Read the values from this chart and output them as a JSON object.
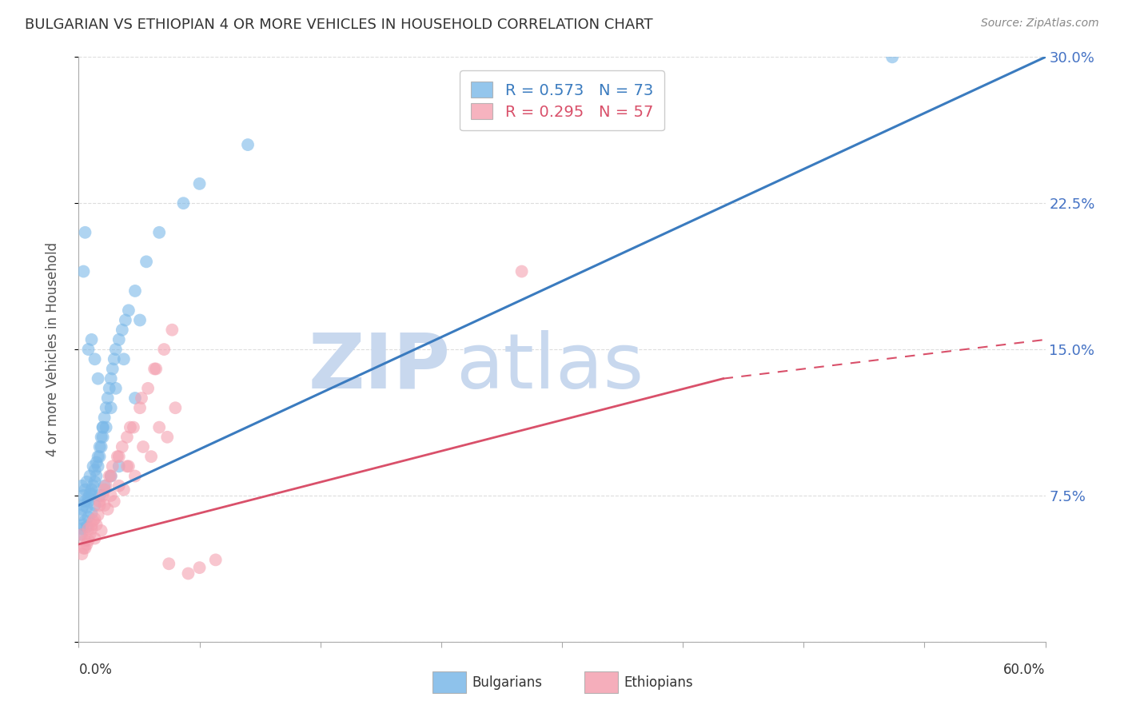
{
  "title": "BULGARIAN VS ETHIOPIAN 4 OR MORE VEHICLES IN HOUSEHOLD CORRELATION CHART",
  "source": "Source: ZipAtlas.com",
  "ylabel": "4 or more Vehicles in Household",
  "xmin": 0.0,
  "xmax": 60.0,
  "ymin": 0.0,
  "ymax": 30.0,
  "yticks_right": [
    7.5,
    15.0,
    22.5,
    30.0
  ],
  "xticks": [
    0.0,
    7.5,
    15.0,
    22.5,
    30.0,
    37.5,
    45.0,
    52.5,
    60.0
  ],
  "bulgarian_R": 0.573,
  "bulgarian_N": 73,
  "ethiopian_R": 0.295,
  "ethiopian_N": 57,
  "bg_color": "#ffffff",
  "blue_scatter_color": "#7ab8e8",
  "pink_scatter_color": "#f4a0b0",
  "blue_line_color": "#3a7bbf",
  "pink_line_color": "#d9506a",
  "watermark_zip_color": "#c8d8ee",
  "watermark_atlas_color": "#c8d8ee",
  "watermark_text_zip": "ZIP",
  "watermark_text_atlas": "atlas",
  "grid_color": "#dddddd",
  "tick_color": "#aaaaaa",
  "right_axis_color": "#4472c4",
  "blue_line_x0": 0.0,
  "blue_line_y0": 7.0,
  "blue_line_x1": 60.0,
  "blue_line_y1": 30.0,
  "pink_line_x0": 0.0,
  "pink_line_y0": 5.0,
  "pink_line_x1_solid": 40.0,
  "pink_line_y1_solid": 13.5,
  "pink_line_x1_dash": 60.0,
  "pink_line_y1_dash": 15.5,
  "bulgarian_scatter_x": [
    0.2,
    0.3,
    0.4,
    0.5,
    0.6,
    0.7,
    0.8,
    0.9,
    1.0,
    1.1,
    1.2,
    1.3,
    1.4,
    1.5,
    1.6,
    1.7,
    1.8,
    1.9,
    2.0,
    2.1,
    2.2,
    2.3,
    2.5,
    2.7,
    2.9,
    3.1,
    3.5,
    4.2,
    5.0,
    6.5,
    0.1,
    0.2,
    0.3,
    0.4,
    0.5,
    0.6,
    0.7,
    0.8,
    0.9,
    1.0,
    1.1,
    1.2,
    1.3,
    1.4,
    1.5,
    1.7,
    2.0,
    2.3,
    2.8,
    3.8,
    0.1,
    0.2,
    0.3,
    0.4,
    0.5,
    0.6,
    0.8,
    1.0,
    1.3,
    1.6,
    2.0,
    2.5,
    10.5,
    50.5,
    7.5,
    3.5,
    1.0,
    1.2,
    1.5,
    0.4,
    0.3,
    0.6,
    0.8
  ],
  "bulgarian_scatter_y": [
    8.0,
    7.5,
    7.8,
    8.2,
    7.2,
    8.5,
    7.6,
    9.0,
    8.8,
    9.2,
    9.5,
    10.0,
    10.5,
    11.0,
    11.5,
    12.0,
    12.5,
    13.0,
    13.5,
    14.0,
    14.5,
    15.0,
    15.5,
    16.0,
    16.5,
    17.0,
    18.0,
    19.5,
    21.0,
    22.5,
    6.5,
    6.8,
    7.0,
    7.2,
    6.9,
    7.4,
    7.6,
    7.8,
    8.0,
    8.2,
    8.5,
    9.0,
    9.5,
    10.0,
    10.5,
    11.0,
    12.0,
    13.0,
    14.5,
    16.5,
    5.5,
    5.8,
    6.0,
    6.2,
    5.9,
    6.4,
    6.6,
    7.0,
    7.5,
    8.0,
    8.5,
    9.0,
    25.5,
    30.0,
    23.5,
    12.5,
    14.5,
    13.5,
    11.0,
    21.0,
    19.0,
    15.0,
    15.5
  ],
  "ethiopian_scatter_x": [
    0.2,
    0.4,
    0.6,
    0.8,
    1.0,
    1.2,
    1.4,
    1.6,
    1.8,
    2.0,
    2.2,
    2.5,
    2.8,
    3.1,
    3.5,
    4.0,
    4.5,
    5.0,
    5.5,
    6.0,
    0.3,
    0.5,
    0.7,
    0.9,
    1.1,
    1.3,
    1.5,
    1.7,
    1.9,
    2.1,
    2.4,
    2.7,
    3.0,
    3.4,
    3.8,
    4.3,
    4.8,
    5.3,
    5.8,
    0.2,
    0.4,
    0.6,
    0.8,
    1.0,
    1.3,
    1.6,
    2.0,
    2.5,
    3.2,
    3.9,
    4.7,
    5.6,
    6.8,
    7.5,
    8.5,
    27.5,
    3.0
  ],
  "ethiopian_scatter_y": [
    5.5,
    5.2,
    5.8,
    6.0,
    5.3,
    6.5,
    5.7,
    7.0,
    6.8,
    7.5,
    7.2,
    8.0,
    7.8,
    9.0,
    8.5,
    10.0,
    9.5,
    11.0,
    10.5,
    12.0,
    4.8,
    5.0,
    5.5,
    6.2,
    6.0,
    7.2,
    7.5,
    8.0,
    8.5,
    9.0,
    9.5,
    10.0,
    10.5,
    11.0,
    12.0,
    13.0,
    14.0,
    15.0,
    16.0,
    4.5,
    4.8,
    5.2,
    5.8,
    6.3,
    7.0,
    7.8,
    8.5,
    9.5,
    11.0,
    12.5,
    14.0,
    4.0,
    3.5,
    3.8,
    4.2,
    19.0,
    9.0
  ]
}
